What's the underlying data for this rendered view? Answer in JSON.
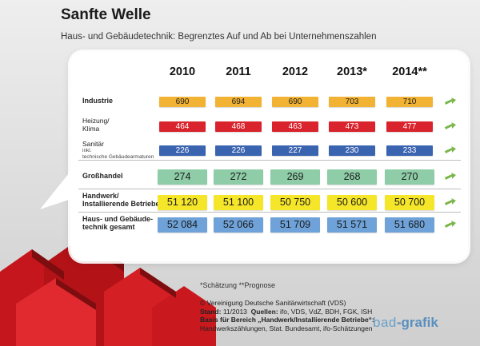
{
  "title": "Sanfte Welle",
  "subtitle": "Haus- und Gebäudetechnik: Begrenztes Auf und Ab bei Unternehmenszahlen",
  "footnote": "*Schätzung  **Prognose",
  "source": {
    "line1": "© Vereinigung Deutsche Sanitärwirtschaft (VDS)",
    "stand_label": "Stand:",
    "stand_value": " 11/2013",
    "quellen_label": "Quellen:",
    "quellen_value": " ifo, VDS, VdZ, BDH, FGK, ISH",
    "basis_label": "Basis für Bereich „Handwerk/Installierende Betriebe“:",
    "basis_value": "Handwerkszählungen, Stat. Bundesamt, ifo-Schätzungen"
  },
  "logo": {
    "part1": "bad",
    "part2": "-grafik"
  },
  "chart_data": {
    "type": "table",
    "columns": [
      "2010",
      "2011",
      "2012",
      "2013*",
      "2014**"
    ],
    "rows": [
      {
        "label": "Industrie",
        "sub": "",
        "values": [
          "690",
          "694",
          "690",
          "703",
          "710"
        ],
        "color": "#f2b233"
      },
      {
        "label": "Heizung/\nKlima",
        "sub": "",
        "values": [
          "464",
          "468",
          "463",
          "473",
          "477"
        ],
        "color": "#d9232d"
      },
      {
        "label": "Sanitär",
        "sub": "inkl. technische Gebäudearmaturen",
        "values": [
          "226",
          "226",
          "227",
          "230",
          "233"
        ],
        "color": "#3a63b0"
      },
      {
        "label": "Großhandel",
        "sub": "",
        "values": [
          "274",
          "272",
          "269",
          "268",
          "270"
        ],
        "color": "#8ecda7"
      },
      {
        "label": "Handwerk/\nInstallierende Betriebe",
        "sub": "",
        "values": [
          "51 120",
          "51 100",
          "50 750",
          "50 600",
          "50 700"
        ],
        "color": "#f5e62a"
      },
      {
        "label": "Haus- und Gebäude-\ntechnik gesamt",
        "sub": "",
        "values": [
          "52 084",
          "52 066",
          "51 709",
          "51 571",
          "51 680"
        ],
        "color": "#6fa2d8"
      }
    ]
  }
}
